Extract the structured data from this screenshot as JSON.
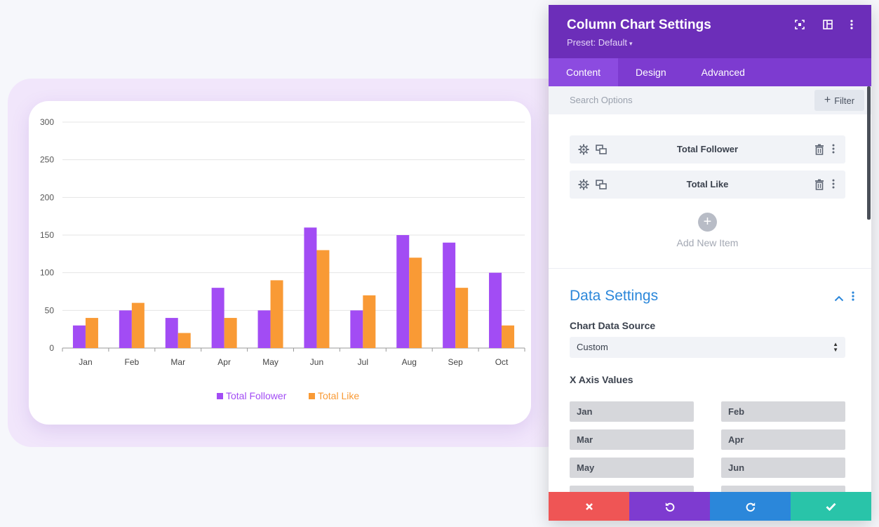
{
  "panel": {
    "title": "Column Chart Settings",
    "preset": "Preset: Default",
    "header_icons": [
      "fullscreen-icon",
      "split-view-icon",
      "more-vertical-icon"
    ],
    "tabs": [
      {
        "label": "Content",
        "active": true
      },
      {
        "label": "Design",
        "active": false
      },
      {
        "label": "Advanced",
        "active": false
      }
    ],
    "search": {
      "placeholder": "Search Options",
      "filter_label": "Filter"
    },
    "items": [
      {
        "label": "Total Follower"
      },
      {
        "label": "Total Like"
      }
    ],
    "add_item_label": "Add New Item",
    "data_settings": {
      "title": "Data Settings",
      "source_label": "Chart Data Source",
      "source_value": "Custom",
      "x_axis_label": "X Axis Values",
      "x_values": [
        "Jan",
        "Feb",
        "Mar",
        "Apr",
        "May",
        "Jun",
        "",
        ""
      ]
    },
    "footer": [
      {
        "name": "cancel",
        "icon": "close-icon",
        "color": "#ef5555"
      },
      {
        "name": "undo",
        "icon": "undo-icon",
        "color": "#7e3bd0"
      },
      {
        "name": "redo",
        "icon": "redo-icon",
        "color": "#2b87da"
      },
      {
        "name": "save",
        "icon": "check-icon",
        "color": "#29c4a9"
      }
    ],
    "colors": {
      "header": "#6c2eb9",
      "tabs": "#7d3bd0",
      "accent": "#2b87da"
    }
  },
  "chart_data": {
    "type": "bar",
    "categories": [
      "Jan",
      "Feb",
      "Mar",
      "Apr",
      "May",
      "Jun",
      "Jul",
      "Aug",
      "Sep",
      "Oct"
    ],
    "series": [
      {
        "name": "Total Follower",
        "color": "#a24cf4",
        "values": [
          30,
          50,
          40,
          80,
          50,
          160,
          50,
          150,
          140,
          100
        ]
      },
      {
        "name": "Total Like",
        "color": "#f99a35",
        "values": [
          40,
          60,
          20,
          40,
          90,
          130,
          70,
          120,
          80,
          30
        ]
      }
    ],
    "ylim": [
      0,
      300
    ],
    "yticks": [
      "0",
      "50",
      "100",
      "150",
      "200",
      "250",
      "300"
    ],
    "grid": true,
    "legend": "bottom"
  }
}
